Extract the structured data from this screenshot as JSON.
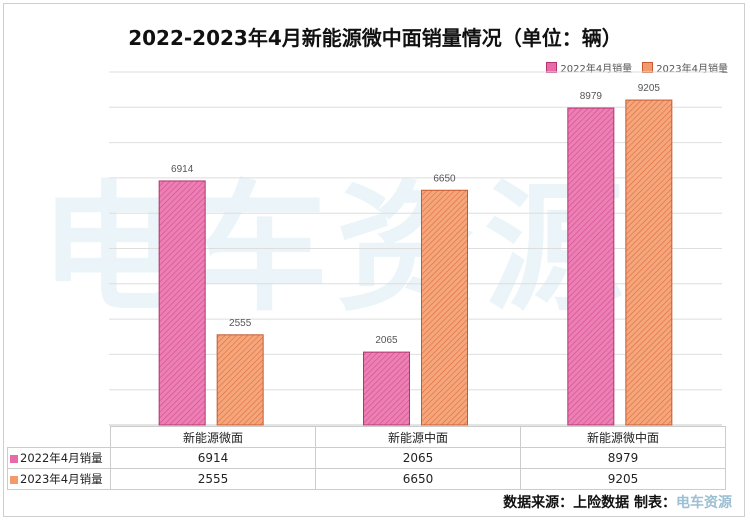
{
  "title": "2022-2023年4月新能源微中面销量情况（单位：辆）",
  "watermark": "电车资源",
  "footer": {
    "source": "数据来源：上险数据  制表：",
    "brand": "电车资源"
  },
  "colors": {
    "series1": "#e86aa8",
    "series1_edge": "#b3336f",
    "series2": "#f39a6c",
    "series2_edge": "#c75a30",
    "grid": "#dedede"
  },
  "chart_data": {
    "type": "bar",
    "title": "2022-2023年4月新能源微中面销量情况（单位：辆）",
    "categories": [
      "新能源微面",
      "新能源中面",
      "新能源微中面"
    ],
    "series": [
      {
        "name": "2022年4月销量",
        "values": [
          6914,
          2065,
          8979
        ]
      },
      {
        "name": "2023年4月销量",
        "values": [
          2555,
          6650,
          9205
        ]
      }
    ],
    "ylim": [
      0,
      10000
    ],
    "grid": true,
    "legend_position": "top-right",
    "data_table": true
  }
}
